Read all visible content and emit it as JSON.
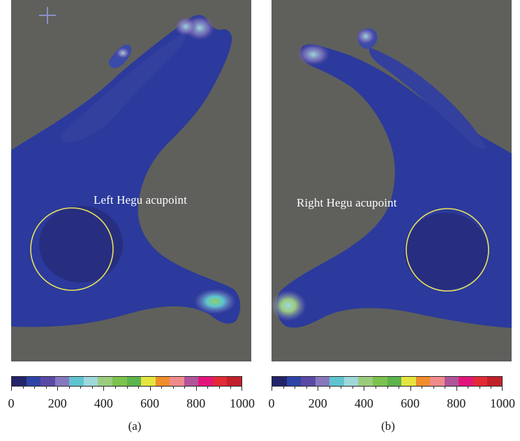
{
  "figure": {
    "panels": [
      {
        "id": "a",
        "caption": "(a)",
        "region_label": "Left Hegu acupoint",
        "highlight_shape": "circle",
        "highlight_color": "#e8e25a"
      },
      {
        "id": "b",
        "caption": "(b)",
        "region_label": "Right Hegu acupoint",
        "highlight_shape": "circle",
        "highlight_color": "#e8e25a"
      }
    ],
    "colorbar": {
      "min": 0,
      "max": 1000,
      "tick_labels": [
        "0",
        "200",
        "400",
        "600",
        "800",
        "1000"
      ],
      "colors": [
        "#24246a",
        "#2d44a6",
        "#5a49a5",
        "#8777bd",
        "#5fc4cf",
        "#9ed8db",
        "#9bcc7e",
        "#7cc24e",
        "#5db34c",
        "#e4e43e",
        "#f08d2c",
        "#f08b8b",
        "#b0549b",
        "#e3157a",
        "#e22a35",
        "#c0202a"
      ]
    },
    "background_color": "#5f605c",
    "marker_icon": "crosshair-icon"
  }
}
